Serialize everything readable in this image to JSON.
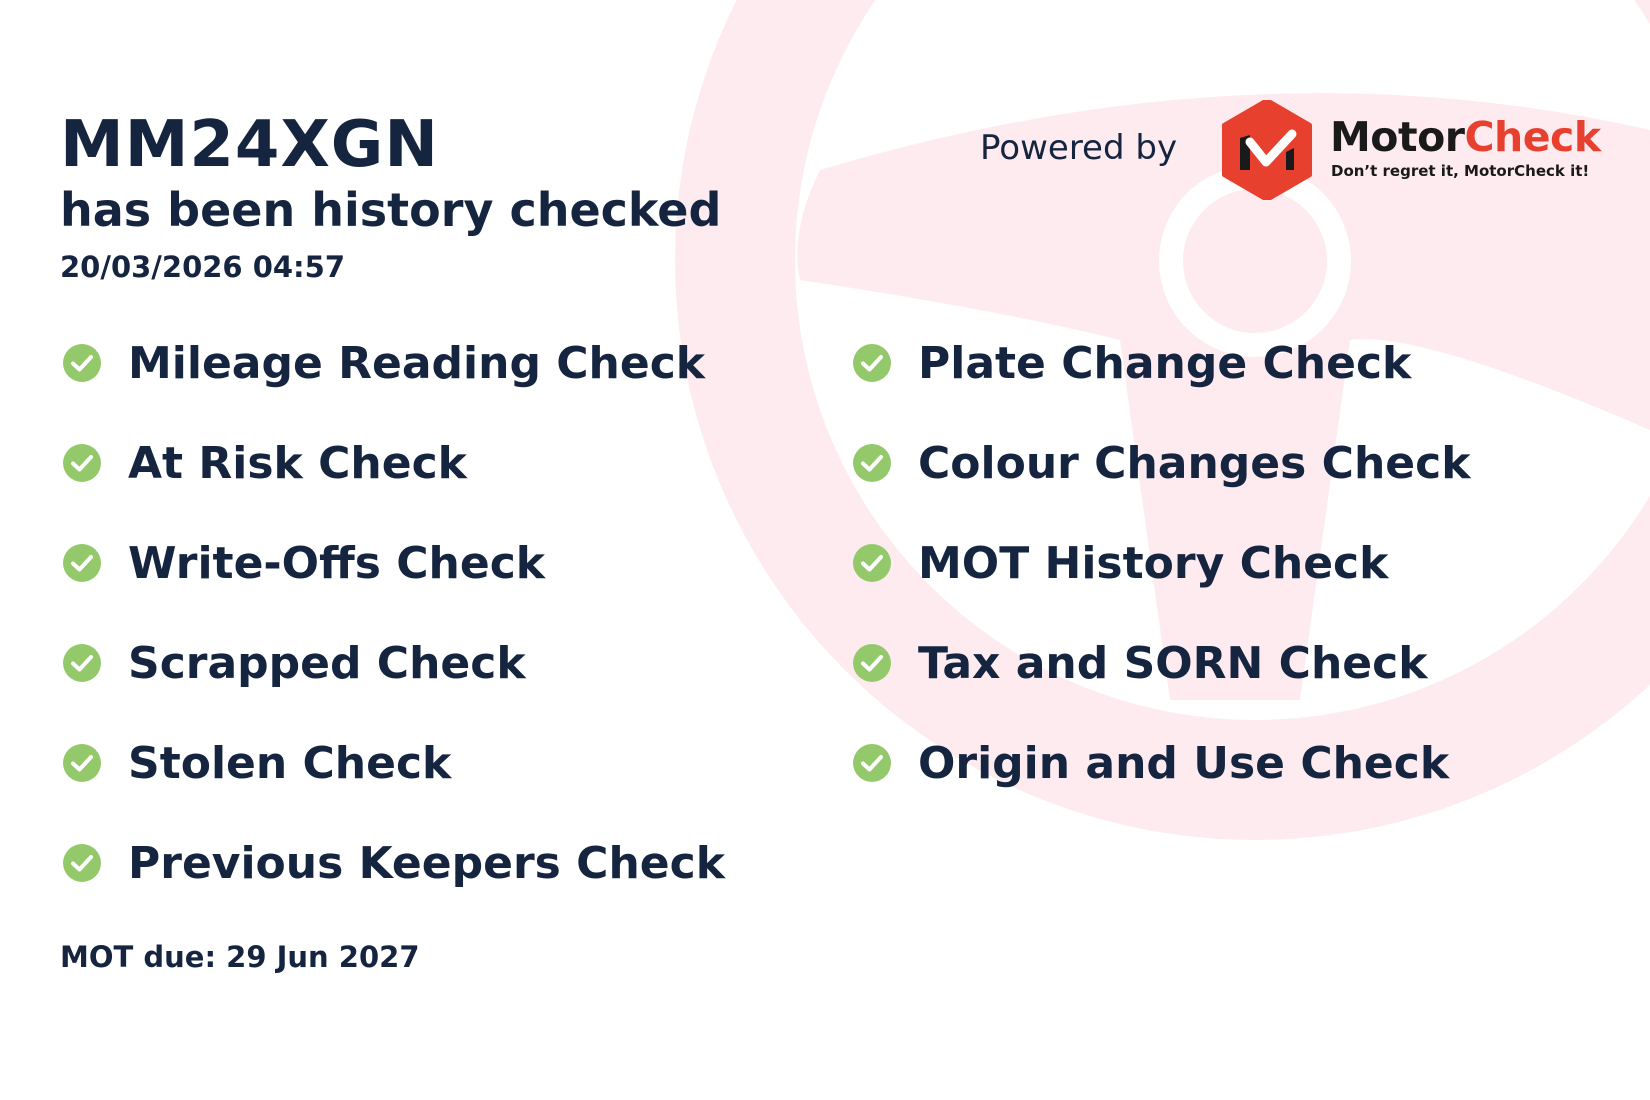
{
  "header": {
    "plate": "MM24XGN",
    "subtitle": "has been history checked",
    "datetime": "20/03/2026 04:57"
  },
  "branding": {
    "powered_by": "Powered by",
    "brand_part1": "Motor",
    "brand_part2": "Check",
    "tagline": "Don’t regret it, MotorCheck it!",
    "brand_red": "#e8402f"
  },
  "checks_left": [
    {
      "label": "Mileage Reading Check",
      "status": "passed",
      "icon": "check-circle-icon"
    },
    {
      "label": "At Risk Check",
      "status": "passed",
      "icon": "check-circle-icon"
    },
    {
      "label": "Write-Offs Check",
      "status": "passed",
      "icon": "check-circle-icon"
    },
    {
      "label": "Scrapped Check",
      "status": "passed",
      "icon": "check-circle-icon"
    },
    {
      "label": "Stolen Check",
      "status": "passed",
      "icon": "check-circle-icon"
    },
    {
      "label": "Previous Keepers Check",
      "status": "passed",
      "icon": "check-circle-icon"
    }
  ],
  "checks_right": [
    {
      "label": "Plate Change Check",
      "status": "passed",
      "icon": "check-circle-icon"
    },
    {
      "label": "Colour Changes Check",
      "status": "passed",
      "icon": "check-circle-icon"
    },
    {
      "label": "MOT History Check",
      "status": "passed",
      "icon": "check-circle-icon"
    },
    {
      "label": "Tax and SORN Check",
      "status": "passed",
      "icon": "check-circle-icon"
    },
    {
      "label": "Origin and Use Check",
      "status": "passed",
      "icon": "check-circle-icon"
    }
  ],
  "footer": {
    "mot_due": "MOT due: 29 Jun 2027"
  },
  "colors": {
    "text": "#15243f",
    "check_green": "#93c96a",
    "watermark_pink": "#fdebf0"
  }
}
